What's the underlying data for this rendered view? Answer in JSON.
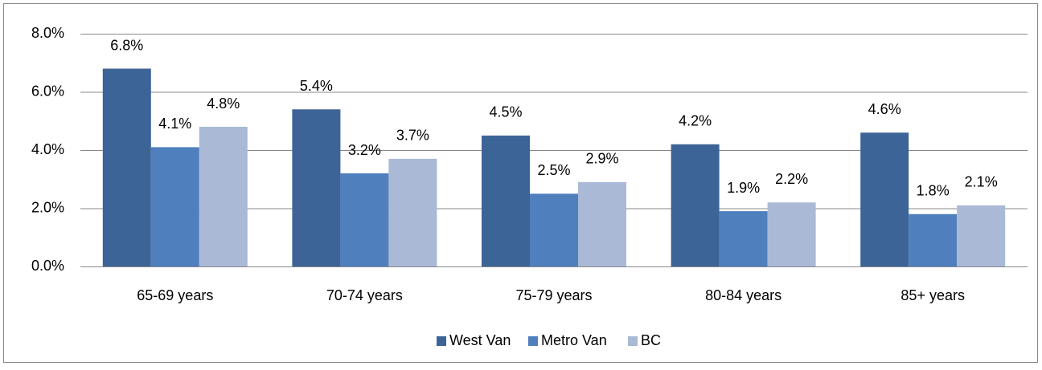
{
  "chart_data": {
    "type": "bar",
    "categories": [
      "65-69 years",
      "70-74 years",
      "75-79 years",
      "80-84 years",
      "85+ years"
    ],
    "series": [
      {
        "name": "West Van",
        "color": "#3d6496",
        "values": [
          6.8,
          5.4,
          4.5,
          4.2,
          4.6
        ],
        "value_labels": [
          "6.8%",
          "5.4%",
          "4.5%",
          "4.2%",
          "4.6%"
        ]
      },
      {
        "name": "Metro Van",
        "color": "#4f7fbd",
        "values": [
          4.1,
          3.2,
          2.5,
          1.9,
          1.8
        ],
        "value_labels": [
          "4.1%",
          "3.2%",
          "2.5%",
          "1.9%",
          "1.8%"
        ]
      },
      {
        "name": "BC",
        "color": "#a9b9d6",
        "values": [
          4.8,
          3.7,
          2.9,
          2.2,
          2.1
        ],
        "value_labels": [
          "4.8%",
          "3.7%",
          "2.9%",
          "2.2%",
          "2.1%"
        ]
      }
    ],
    "ylim": [
      0,
      8
    ],
    "yticks": [
      {
        "value": 0,
        "label": "0.0%"
      },
      {
        "value": 2,
        "label": "2.0%"
      },
      {
        "value": 4,
        "label": "4.0%"
      },
      {
        "value": 6,
        "label": "6.0%"
      },
      {
        "value": 8,
        "label": "8.0%"
      }
    ],
    "grid": true,
    "legend": "bottom"
  }
}
